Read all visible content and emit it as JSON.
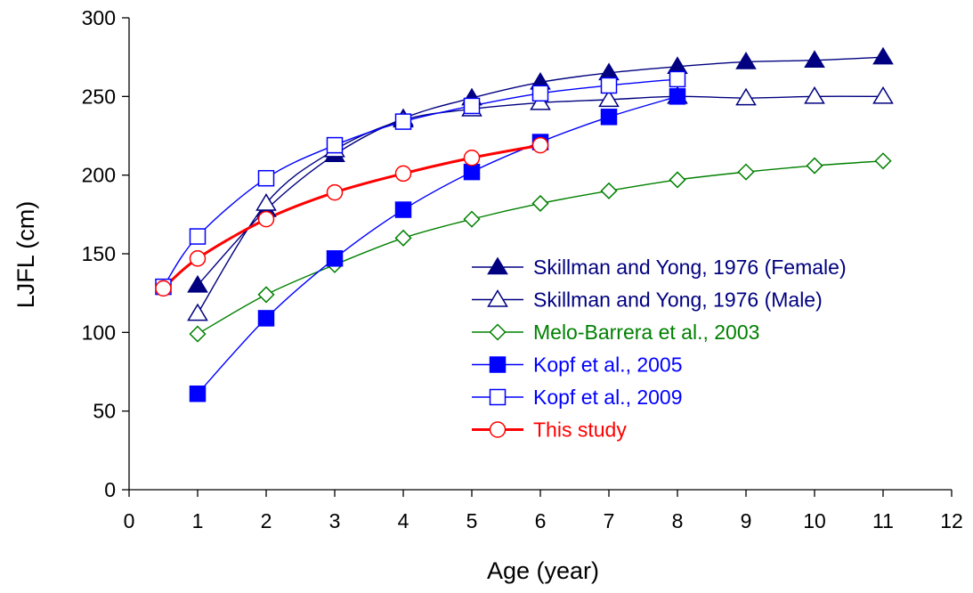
{
  "chart_data": {
    "type": "line",
    "title": "",
    "xlabel": "Age (year)",
    "ylabel": "LJFL (cm)",
    "xlim": [
      0,
      12
    ],
    "ylim": [
      0,
      300
    ],
    "xticks": [
      "0",
      "1",
      "2",
      "3",
      "4",
      "5",
      "6",
      "7",
      "8",
      "9",
      "10",
      "11",
      "12"
    ],
    "yticks": [
      "0",
      "50",
      "100",
      "150",
      "200",
      "250",
      "300"
    ],
    "grid": false,
    "legend_position": "right-center",
    "series": [
      {
        "name": "Skillman and Yong, 1976 (Female)",
        "color": "#000080",
        "marker": "triangle-filled",
        "points": [
          [
            1,
            130
          ],
          [
            2,
            178
          ],
          [
            3,
            213
          ],
          [
            4,
            236
          ],
          [
            5,
            249
          ],
          [
            6,
            259
          ],
          [
            7,
            265
          ],
          [
            8,
            269
          ],
          [
            9,
            272
          ],
          [
            10,
            273
          ],
          [
            11,
            275
          ]
        ]
      },
      {
        "name": "Skillman and Yong, 1976 (Male)",
        "color": "#000080",
        "marker": "triangle-open",
        "points": [
          [
            1,
            112
          ],
          [
            2,
            182
          ],
          [
            3,
            216
          ],
          [
            4,
            235
          ],
          [
            5,
            242
          ],
          [
            6,
            246
          ],
          [
            7,
            248
          ],
          [
            8,
            250
          ],
          [
            9,
            249
          ],
          [
            10,
            250
          ],
          [
            11,
            250
          ]
        ]
      },
      {
        "name": "Melo-Barrera et al., 2003",
        "color": "#008000",
        "marker": "diamond-open",
        "points": [
          [
            1,
            99
          ],
          [
            2,
            124
          ],
          [
            3,
            143
          ],
          [
            4,
            160
          ],
          [
            5,
            172
          ],
          [
            6,
            182
          ],
          [
            7,
            190
          ],
          [
            8,
            197
          ],
          [
            9,
            202
          ],
          [
            10,
            206
          ],
          [
            11,
            209
          ]
        ]
      },
      {
        "name": "Kopf et al., 2005",
        "color": "#0000ff",
        "marker": "square-filled",
        "points": [
          [
            1,
            61
          ],
          [
            2,
            109
          ],
          [
            3,
            147
          ],
          [
            4,
            178
          ],
          [
            5,
            202
          ],
          [
            6,
            221
          ],
          [
            7,
            237
          ],
          [
            8,
            250
          ]
        ]
      },
      {
        "name": "Kopf et al., 2009",
        "color": "#0000ff",
        "marker": "square-open",
        "points": [
          [
            0.5,
            129
          ],
          [
            1,
            161
          ],
          [
            2,
            198
          ],
          [
            3,
            219
          ],
          [
            4,
            234
          ],
          [
            5,
            244
          ],
          [
            6,
            252
          ],
          [
            7,
            257
          ],
          [
            8,
            261
          ]
        ]
      },
      {
        "name": "This study",
        "color": "#ff0000",
        "marker": "circle-open",
        "points": [
          [
            0.5,
            128
          ],
          [
            1,
            147
          ],
          [
            2,
            172
          ],
          [
            3,
            189
          ],
          [
            4,
            201
          ],
          [
            5,
            211
          ],
          [
            6,
            219
          ]
        ]
      }
    ]
  }
}
